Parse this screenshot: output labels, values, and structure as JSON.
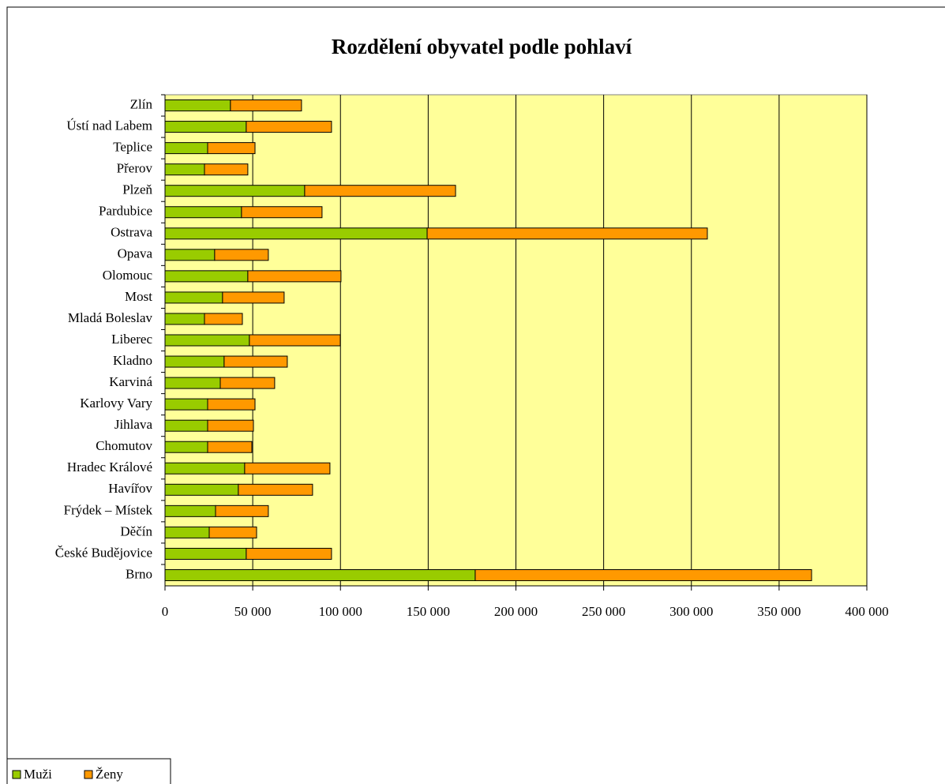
{
  "chart_data": {
    "type": "stacked_barh",
    "title": "Rozdělení obyvatel podle pohlaví",
    "categories": [
      "Zlín",
      "Ústí nad Labem",
      "Teplice",
      "Přerov",
      "Plzeň",
      "Pardubice",
      "Ostrava",
      "Opava",
      "Olomouc",
      "Most",
      "Mladá Boleslav",
      "Liberec",
      "Kladno",
      "Karviná",
      "Karlovy Vary",
      "Jihlava",
      "Chomutov",
      "Hradec Králové",
      "Havířov",
      "Frýdek – Místek",
      "Děčín",
      "České Budějovice",
      "Brno"
    ],
    "series": [
      {
        "name": "Muži",
        "color": "#99cc00",
        "values": [
          37300,
          46300,
          24300,
          22500,
          79600,
          43600,
          149400,
          28300,
          47200,
          32800,
          22500,
          48100,
          33700,
          31500,
          24300,
          24300,
          24300,
          45400,
          41800,
          28800,
          25200,
          46300,
          176800
        ]
      },
      {
        "name": "Ženy",
        "color": "#ff9900",
        "values": [
          40500,
          48600,
          27000,
          24700,
          86000,
          45900,
          159700,
          30600,
          53100,
          35100,
          21600,
          51800,
          36000,
          31000,
          27000,
          26100,
          25200,
          48600,
          42300,
          30100,
          27000,
          48600,
          191700
        ]
      }
    ],
    "xlim": [
      0,
      400000
    ],
    "xticks": [
      0,
      {
        "value": 50000,
        "label": "50 000"
      },
      {
        "value": 100000,
        "label": "100 000"
      },
      {
        "value": 150000,
        "label": "150 000"
      },
      {
        "value": 200000,
        "label": "200 000"
      },
      {
        "value": 250000,
        "label": "250 000"
      },
      {
        "value": 300000,
        "label": "300 000"
      },
      {
        "value": 350000,
        "label": "350 000"
      },
      {
        "value": 400000,
        "label": "400 000"
      }
    ],
    "grid": true,
    "legend": "bottom-left",
    "plot_background": "#ffff99"
  }
}
